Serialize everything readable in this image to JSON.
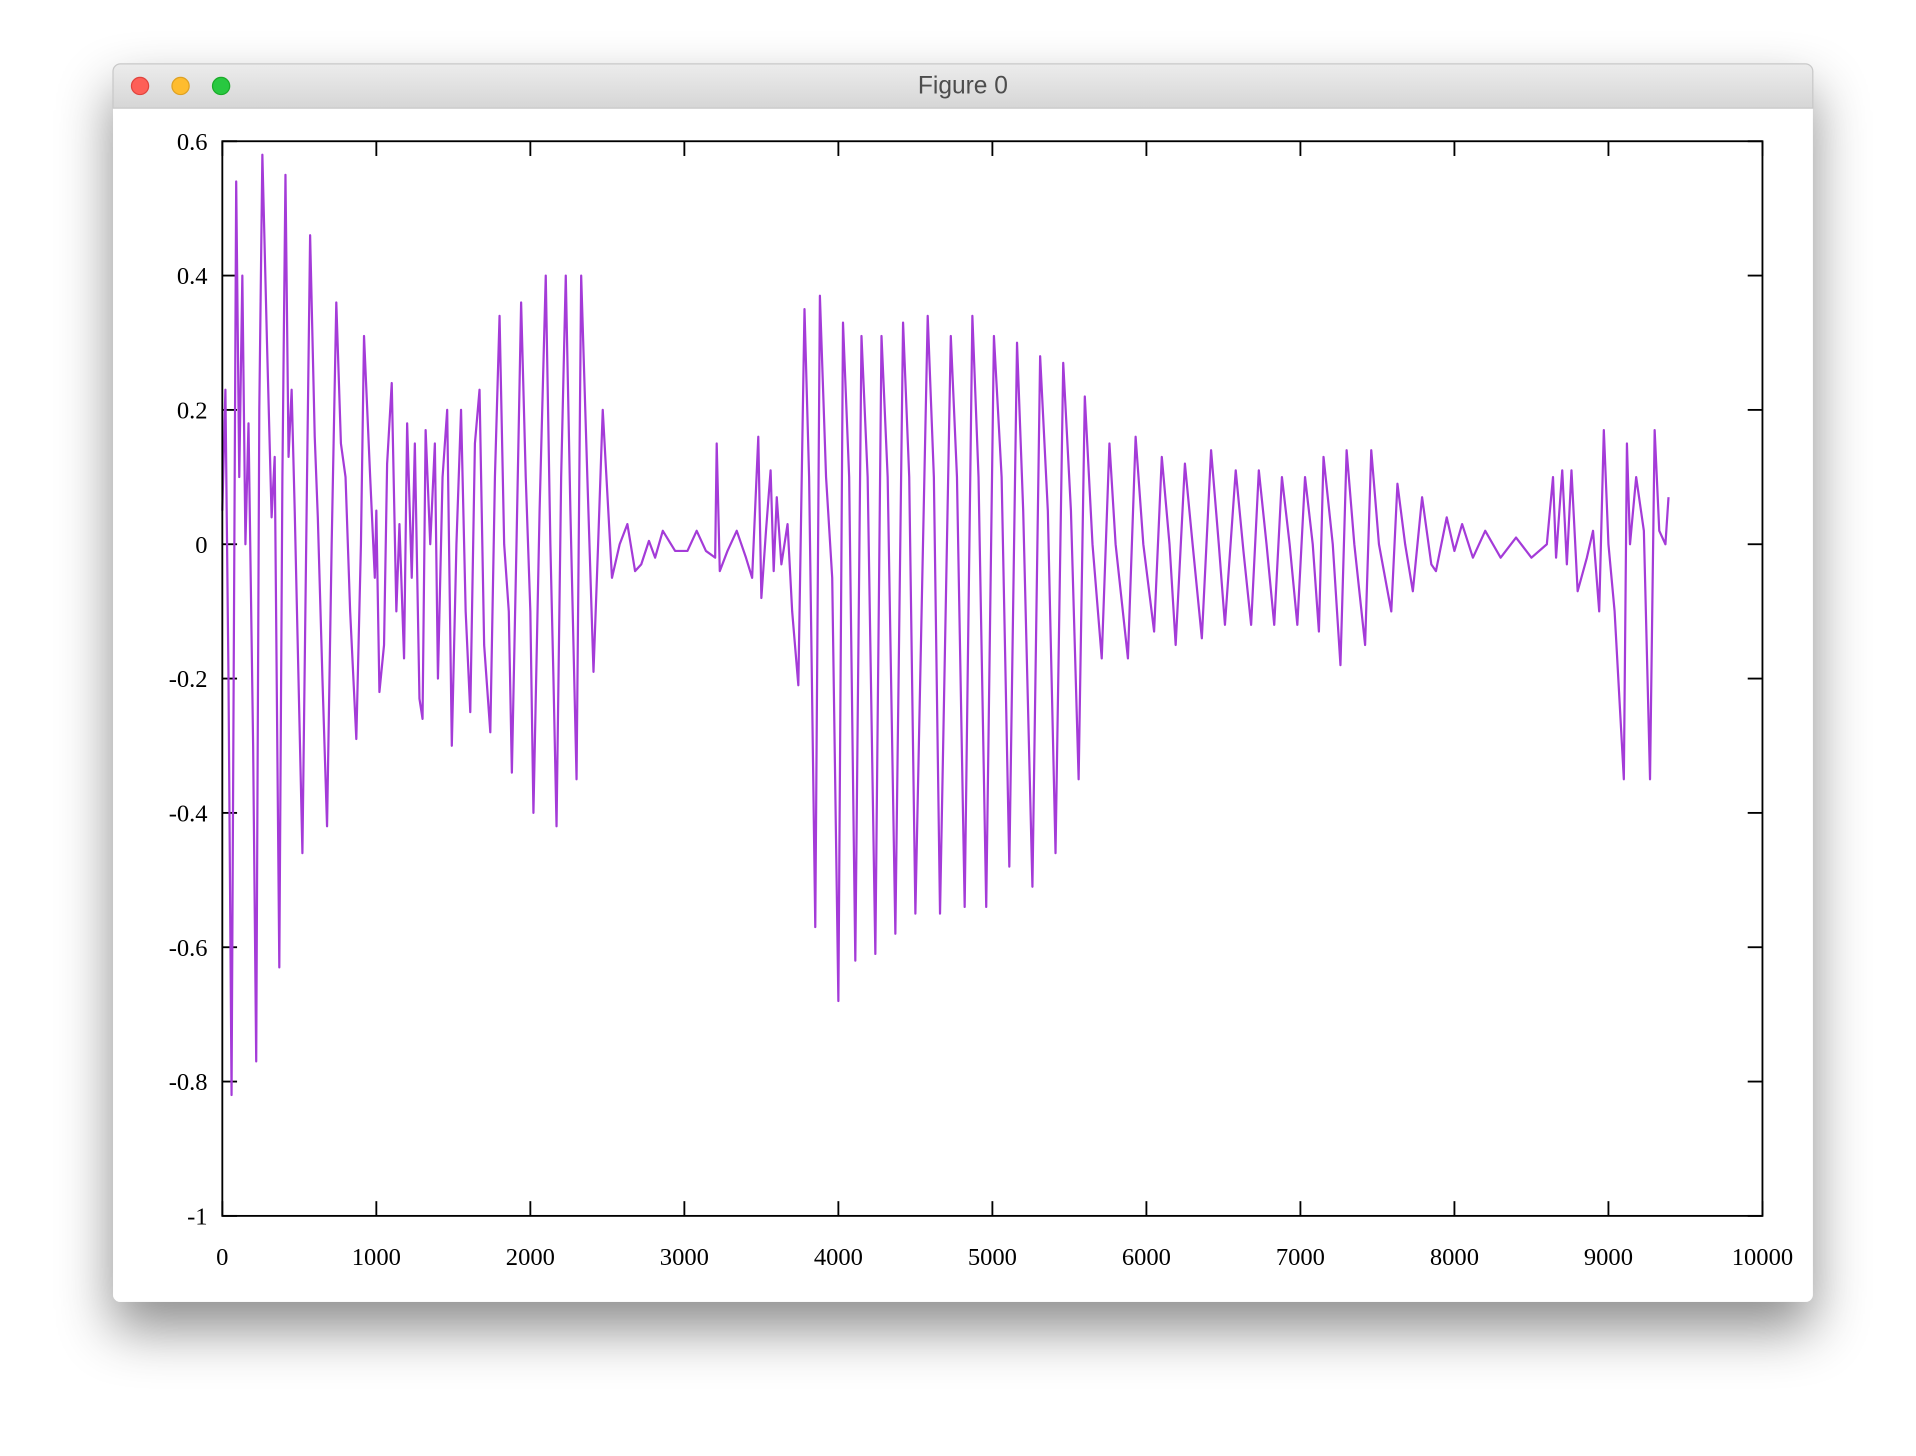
{
  "window": {
    "title": "Figure 0"
  },
  "chart_data": {
    "type": "line",
    "x": [
      0,
      20,
      40,
      60,
      90,
      110,
      130,
      150,
      170,
      200,
      220,
      240,
      260,
      290,
      320,
      340,
      370,
      390,
      410,
      430,
      450,
      470,
      520,
      550,
      570,
      600,
      620,
      650,
      680,
      710,
      740,
      770,
      800,
      830,
      870,
      900,
      920,
      960,
      990,
      1000,
      1020,
      1050,
      1070,
      1100,
      1130,
      1150,
      1180,
      1200,
      1230,
      1250,
      1280,
      1300,
      1320,
      1350,
      1380,
      1400,
      1430,
      1460,
      1490,
      1520,
      1550,
      1580,
      1610,
      1640,
      1670,
      1700,
      1740,
      1770,
      1800,
      1830,
      1860,
      1880,
      1910,
      1940,
      1970,
      2000,
      2020,
      2060,
      2100,
      2130,
      2150,
      2170,
      2200,
      2230,
      2260,
      2300,
      2330,
      2370,
      2410,
      2440,
      2470,
      2530,
      2580,
      2630,
      2680,
      2720,
      2770,
      2810,
      2860,
      2940,
      3020,
      3080,
      3140,
      3200,
      3210,
      3230,
      3280,
      3340,
      3400,
      3440,
      3480,
      3500,
      3530,
      3560,
      3580,
      3600,
      3630,
      3670,
      3700,
      3740,
      3780,
      3810,
      3850,
      3880,
      3920,
      3960,
      4000,
      4030,
      4070,
      4110,
      4150,
      4190,
      4240,
      4280,
      4320,
      4370,
      4420,
      4460,
      4500,
      4580,
      4620,
      4660,
      4730,
      4770,
      4820,
      4870,
      4910,
      4960,
      5010,
      5060,
      5110,
      5160,
      5200,
      5260,
      5310,
      5360,
      5410,
      5460,
      5510,
      5560,
      5600,
      5650,
      5710,
      5760,
      5800,
      5880,
      5930,
      5980,
      6050,
      6100,
      6150,
      6190,
      6250,
      6300,
      6360,
      6420,
      6470,
      6510,
      6580,
      6630,
      6680,
      6730,
      6780,
      6830,
      6880,
      6930,
      6980,
      7030,
      7080,
      7120,
      7150,
      7210,
      7260,
      7300,
      7350,
      7420,
      7460,
      7510,
      7590,
      7630,
      7680,
      7730,
      7790,
      7850,
      7880,
      7950,
      8000,
      8050,
      8120,
      8200,
      8300,
      8400,
      8500,
      8600,
      8640,
      8660,
      8700,
      8730,
      8760,
      8800,
      8860,
      8900,
      8940,
      8970,
      9000,
      9040,
      9100,
      9120,
      9140,
      9180,
      9230,
      9270,
      9300,
      9330,
      9370,
      9390
    ],
    "series": [
      {
        "color": "#a43bd8",
        "values": [
          0.05,
          0.23,
          -0.2,
          -0.82,
          0.54,
          0.1,
          0.4,
          0.0,
          0.18,
          -0.3,
          -0.77,
          0.2,
          0.58,
          0.3,
          0.04,
          0.13,
          -0.63,
          0.1,
          0.55,
          0.13,
          0.23,
          0.05,
          -0.46,
          0.1,
          0.46,
          0.16,
          0.04,
          -0.2,
          -0.42,
          0.0,
          0.36,
          0.15,
          0.1,
          -0.1,
          -0.29,
          0.0,
          0.31,
          0.1,
          -0.05,
          0.05,
          -0.22,
          -0.15,
          0.12,
          0.24,
          -0.1,
          0.03,
          -0.17,
          0.18,
          -0.05,
          0.15,
          -0.23,
          -0.26,
          0.17,
          0.0,
          0.15,
          -0.2,
          0.1,
          0.2,
          -0.3,
          0.0,
          0.2,
          -0.1,
          -0.25,
          0.15,
          0.23,
          -0.15,
          -0.28,
          0.1,
          0.34,
          0.0,
          -0.1,
          -0.34,
          0.0,
          0.36,
          0.1,
          -0.1,
          -0.4,
          0.05,
          0.4,
          0.0,
          -0.2,
          -0.42,
          0.1,
          0.4,
          0.05,
          -0.35,
          0.4,
          0.1,
          -0.19,
          0.0,
          0.2,
          -0.05,
          0.0,
          0.03,
          -0.04,
          -0.03,
          0.005,
          -0.02,
          0.02,
          -0.01,
          -0.01,
          0.02,
          -0.01,
          -0.02,
          0.15,
          -0.04,
          -0.01,
          0.02,
          -0.02,
          -0.05,
          0.16,
          -0.08,
          0.02,
          0.11,
          -0.04,
          0.07,
          -0.03,
          0.03,
          -0.1,
          -0.21,
          0.35,
          0.1,
          -0.57,
          0.37,
          0.1,
          -0.05,
          -0.68,
          0.33,
          0.1,
          -0.62,
          0.31,
          0.1,
          -0.61,
          0.31,
          0.1,
          -0.58,
          0.33,
          0.1,
          -0.55,
          0.34,
          0.1,
          -0.55,
          0.31,
          0.1,
          -0.54,
          0.34,
          0.1,
          -0.54,
          0.31,
          0.1,
          -0.48,
          0.3,
          0.05,
          -0.51,
          0.28,
          0.05,
          -0.46,
          0.27,
          0.05,
          -0.35,
          0.22,
          0.0,
          -0.17,
          0.15,
          0.0,
          -0.17,
          0.16,
          0.0,
          -0.13,
          0.13,
          0.0,
          -0.15,
          0.12,
          0.0,
          -0.14,
          0.14,
          0.0,
          -0.12,
          0.11,
          -0.01,
          -0.12,
          0.11,
          0.0,
          -0.12,
          0.1,
          0.0,
          -0.12,
          0.1,
          0.0,
          -0.13,
          0.13,
          0.0,
          -0.18,
          0.14,
          0.0,
          -0.15,
          0.14,
          0.0,
          -0.1,
          0.09,
          0.0,
          -0.07,
          0.07,
          -0.03,
          -0.04,
          0.04,
          -0.01,
          0.03,
          -0.02,
          0.02,
          -0.02,
          0.01,
          -0.02,
          0.0,
          0.1,
          -0.02,
          0.11,
          -0.03,
          0.11,
          -0.07,
          -0.02,
          0.02,
          -0.1,
          0.17,
          0.0,
          -0.1,
          -0.35,
          0.15,
          0.0,
          0.1,
          0.02,
          -0.35,
          0.17,
          0.02,
          0.0,
          0.07
        ]
      }
    ],
    "xlim": [
      0,
      10000
    ],
    "ylim": [
      -1,
      0.6
    ],
    "xticks": [
      0,
      1000,
      2000,
      3000,
      4000,
      5000,
      6000,
      7000,
      8000,
      9000,
      10000
    ],
    "yticks": [
      -1,
      -0.8,
      -0.6,
      -0.4,
      -0.2,
      0,
      0.2,
      0.4,
      0.6
    ]
  }
}
